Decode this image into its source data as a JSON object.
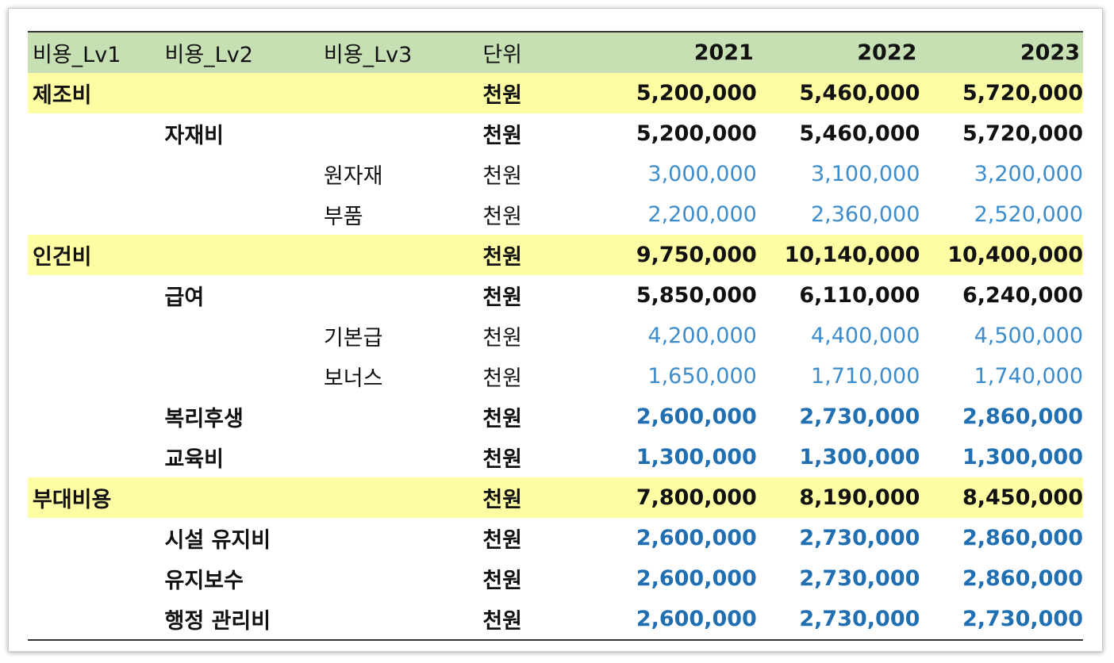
{
  "headers": {
    "lv1": "비용_Lv1",
    "lv2": "비용_Lv2",
    "lv3": "비용_Lv3",
    "unit": "단위",
    "y2021": "2021",
    "y2022": "2022",
    "y2023": "2023"
  },
  "rows": [
    {
      "level": "lv1",
      "lv1": "제조비",
      "lv2": "",
      "lv3": "",
      "unit": "천원",
      "values": [
        "5,200,000",
        "5,460,000",
        "5,720,000"
      ]
    },
    {
      "level": "lv2",
      "lv1": "",
      "lv2": "자재비",
      "lv3": "",
      "unit": "천원",
      "values": [
        "5,200,000",
        "5,460,000",
        "5,720,000"
      ]
    },
    {
      "level": "lv3",
      "lv1": "",
      "lv2": "",
      "lv3": "원자재",
      "unit": "천원",
      "values": [
        "3,000,000",
        "3,100,000",
        "3,200,000"
      ]
    },
    {
      "level": "lv3",
      "lv1": "",
      "lv2": "",
      "lv3": "부품",
      "unit": "천원",
      "values": [
        "2,200,000",
        "2,360,000",
        "2,520,000"
      ]
    },
    {
      "level": "lv1",
      "lv1": "인건비",
      "lv2": "",
      "lv3": "",
      "unit": "천원",
      "values": [
        "9,750,000",
        "10,140,000",
        "10,400,000"
      ]
    },
    {
      "level": "lv2",
      "lv1": "",
      "lv2": "급여",
      "lv3": "",
      "unit": "천원",
      "values": [
        "5,850,000",
        "6,110,000",
        "6,240,000"
      ]
    },
    {
      "level": "lv3",
      "lv1": "",
      "lv2": "",
      "lv3": "기본급",
      "unit": "천원",
      "values": [
        "4,200,000",
        "4,400,000",
        "4,500,000"
      ]
    },
    {
      "level": "lv3",
      "lv1": "",
      "lv2": "",
      "lv3": "보너스",
      "unit": "천원",
      "values": [
        "1,650,000",
        "1,710,000",
        "1,740,000"
      ]
    },
    {
      "level": "lv2-input",
      "lv1": "",
      "lv2": "복리후생",
      "lv3": "",
      "unit": "천원",
      "values": [
        "2,600,000",
        "2,730,000",
        "2,860,000"
      ]
    },
    {
      "level": "lv2-input",
      "lv1": "",
      "lv2": "교육비",
      "lv3": "",
      "unit": "천원",
      "values": [
        "1,300,000",
        "1,300,000",
        "1,300,000"
      ]
    },
    {
      "level": "lv1",
      "lv1": "부대비용",
      "lv2": "",
      "lv3": "",
      "unit": "천원",
      "values": [
        "7,800,000",
        "8,190,000",
        "8,450,000"
      ]
    },
    {
      "level": "lv2-input",
      "lv1": "",
      "lv2": "시설 유지비",
      "lv3": "",
      "unit": "천원",
      "values": [
        "2,600,000",
        "2,730,000",
        "2,860,000"
      ]
    },
    {
      "level": "lv2-input",
      "lv1": "",
      "lv2": "유지보수",
      "lv3": "",
      "unit": "천원",
      "values": [
        "2,600,000",
        "2,730,000",
        "2,860,000"
      ]
    },
    {
      "level": "lv2-input",
      "lv1": "",
      "lv2": "행정 관리비",
      "lv3": "",
      "unit": "천원",
      "values": [
        "2,600,000",
        "2,730,000",
        "2,730,000"
      ]
    }
  ],
  "colors": {
    "header_bg": "#c6e0b4",
    "lv1_bg": "#fefda3",
    "input_value": "#1f6fb2",
    "detail_value": "#3d8ccb",
    "text": "#111111"
  }
}
